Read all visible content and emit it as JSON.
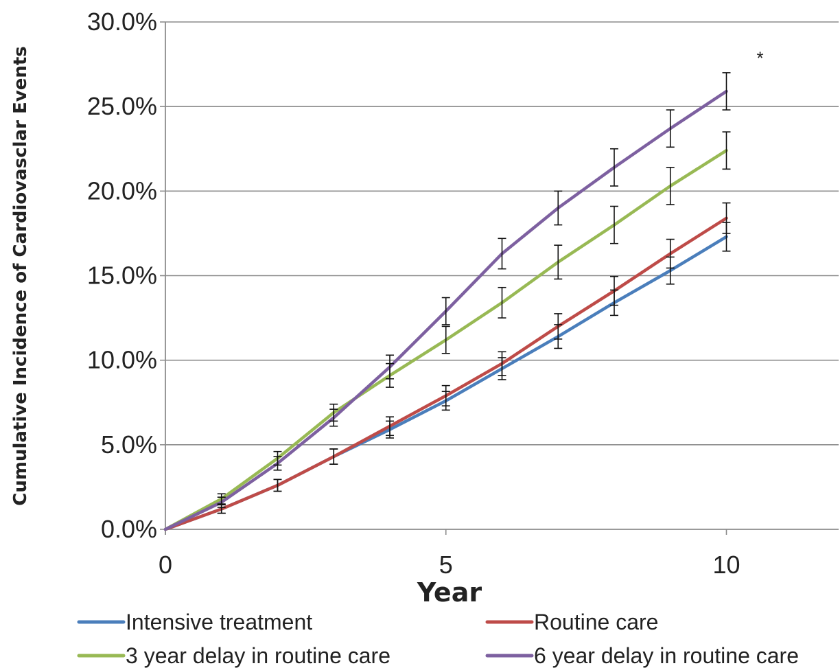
{
  "chart_data": {
    "type": "line",
    "title": "",
    "xlabel": "Year",
    "ylabel": "Cumulative Incidence of Cardiovasclar Events",
    "xlim": [
      0,
      12
    ],
    "ylim": [
      0,
      30
    ],
    "x_ticks": [
      {
        "value": 0,
        "label": "0"
      },
      {
        "value": 5,
        "label": "5"
      },
      {
        "value": 10,
        "label": "10"
      }
    ],
    "y_ticks": [
      {
        "value": 0,
        "label": "0.0%"
      },
      {
        "value": 5,
        "label": "5.0%"
      },
      {
        "value": 10,
        "label": "10.0%"
      },
      {
        "value": 15,
        "label": "15.0%"
      },
      {
        "value": 20,
        "label": "20.0%"
      },
      {
        "value": 25,
        "label": "25.0%"
      },
      {
        "value": 30,
        "label": "30.0%"
      }
    ],
    "grid": "horizontal",
    "legend_position": "bottom",
    "x": [
      0,
      1,
      2,
      3,
      4,
      5,
      6,
      7,
      8,
      9,
      10
    ],
    "series": [
      {
        "name": "Intensive treatment",
        "color": "#4a7ebb",
        "values": [
          0,
          1.2,
          2.6,
          4.3,
          5.9,
          7.6,
          9.5,
          11.4,
          13.4,
          15.3,
          17.3
        ],
        "error": [
          0,
          0.25,
          0.35,
          0.45,
          0.5,
          0.55,
          0.65,
          0.7,
          0.75,
          0.8,
          0.85
        ]
      },
      {
        "name": "Routine care",
        "color": "#be4b48",
        "values": [
          0,
          1.2,
          2.6,
          4.3,
          6.1,
          7.9,
          9.8,
          12.0,
          14.1,
          16.3,
          18.4
        ],
        "error": [
          0,
          0.25,
          0.35,
          0.45,
          0.55,
          0.6,
          0.7,
          0.75,
          0.85,
          0.85,
          0.9
        ]
      },
      {
        "name": "3 year delay in routine care",
        "color": "#98b954",
        "values": [
          0,
          1.8,
          4.2,
          6.9,
          9.1,
          11.2,
          13.4,
          15.8,
          18.0,
          20.3,
          22.4
        ],
        "error": [
          0,
          0.3,
          0.4,
          0.5,
          0.7,
          0.8,
          0.9,
          1.0,
          1.1,
          1.1,
          1.1
        ]
      },
      {
        "name": "6 year delay in routine care",
        "color": "#7d60a0",
        "values": [
          0,
          1.6,
          3.9,
          6.6,
          9.6,
          12.9,
          16.3,
          19.0,
          21.4,
          23.7,
          25.9
        ],
        "error": [
          0,
          0.3,
          0.4,
          0.5,
          0.7,
          0.8,
          0.9,
          1.0,
          1.1,
          1.1,
          1.1
        ]
      }
    ],
    "annotations": [
      {
        "text": "*",
        "x": 10.6,
        "y": 27.5
      }
    ]
  }
}
